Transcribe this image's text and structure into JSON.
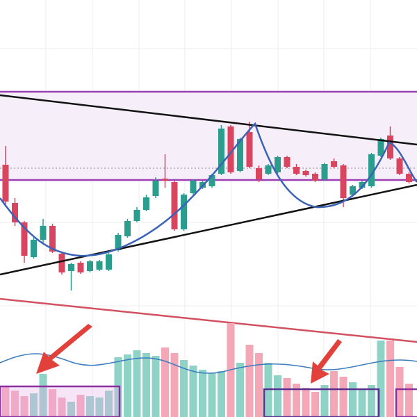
{
  "chart_data": {
    "type": "candlestick",
    "open": [
      363,
      308,
      280,
      230,
      255,
      275,
      235,
      210,
      222,
      210,
      212,
      212,
      240,
      260,
      282,
      298,
      318,
      343,
      338,
      270,
      322,
      330,
      332,
      350,
      418,
      354,
      410,
      358,
      350,
      352,
      374,
      360,
      354,
      350,
      342,
      368,
      362,
      320,
      330,
      332,
      376,
      405,
      372,
      350
    ],
    "high": [
      390,
      315,
      282,
      258,
      285,
      278,
      237,
      222,
      224,
      226,
      226,
      236,
      265,
      285,
      302,
      320,
      345,
      378,
      340,
      322,
      342,
      340,
      350,
      420,
      420,
      402,
      425,
      362,
      364,
      376,
      376,
      364,
      356,
      352,
      366,
      372,
      364,
      334,
      340,
      380,
      402,
      418,
      374,
      352
    ],
    "low": [
      305,
      275,
      222,
      228,
      250,
      236,
      205,
      182,
      206,
      208,
      210,
      210,
      238,
      258,
      280,
      296,
      315,
      330,
      268,
      268,
      320,
      328,
      330,
      348,
      350,
      352,
      358,
      338,
      348,
      350,
      358,
      348,
      346,
      338,
      340,
      358,
      302,
      318,
      328,
      330,
      374,
      370,
      348,
      336
    ],
    "close": [
      310,
      280,
      232,
      255,
      275,
      238,
      208,
      220,
      208,
      224,
      224,
      234,
      262,
      282,
      298,
      316,
      340,
      340,
      270,
      320,
      340,
      338,
      348,
      415,
      352,
      400,
      360,
      342,
      362,
      374,
      360,
      350,
      348,
      340,
      364,
      360,
      315,
      332,
      338,
      378,
      400,
      372,
      350,
      338
    ],
    "volume": [
      45,
      38,
      30,
      34,
      62,
      40,
      28,
      22,
      32,
      30,
      28,
      38,
      86,
      90,
      96,
      92,
      88,
      100,
      92,
      82,
      74,
      68,
      64,
      66,
      135,
      78,
      104,
      92,
      78,
      60,
      56,
      48,
      42,
      36,
      46,
      66,
      58,
      50,
      40,
      46,
      110,
      110,
      72,
      48
    ],
    "up_color": "#2a9d8f",
    "down_color": "#d9455f",
    "up_volume_color": "#8fd3c7",
    "down_volume_color": "#f4a7b6",
    "ylim": [
      0,
      600
    ]
  }
}
